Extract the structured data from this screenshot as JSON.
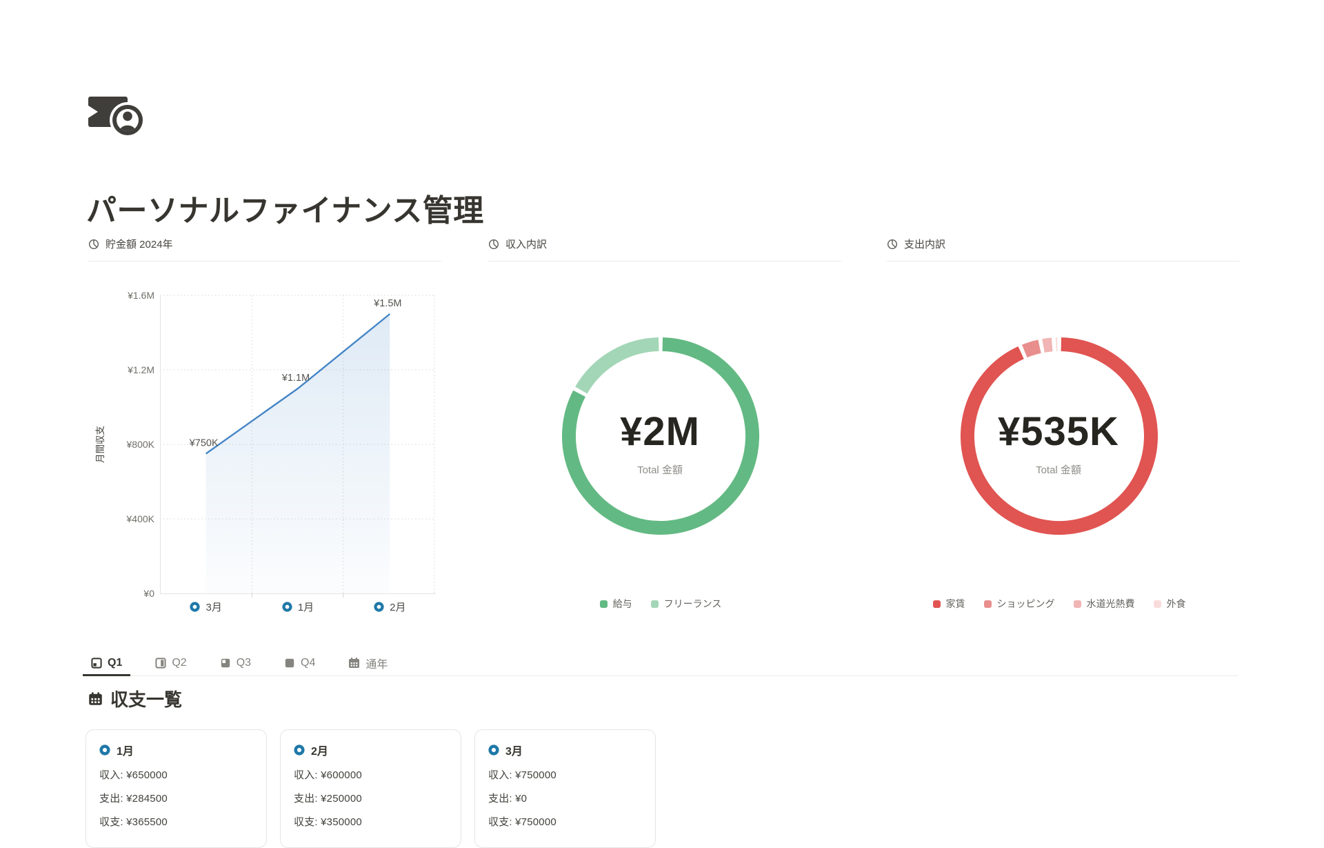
{
  "page": {
    "title": "パーソナルファイナンス管理"
  },
  "icons": {
    "page_icon": "banknote-with-coin",
    "column_header_icon": "pie-chart",
    "month_marker_icon": "blue-ring-marker",
    "list_heading_icon": "calendar",
    "tab_q_icons": "quarter-filled-squares",
    "tab_year_icon": "calendar"
  },
  "colors": {
    "text_dark": "#37352f",
    "text_gray": "#787774",
    "line_blue": "#4485c7",
    "marker_blue": "#1f78a8",
    "income_green": "#63b983",
    "income_green_light": "#a3d6b6",
    "expense_red": "#e05451",
    "divider": "#eceae8"
  },
  "chart_data": [
    {
      "id": "savings-line",
      "type": "line",
      "title": "貯金額 2024年",
      "categories": [
        "3月",
        "1月",
        "2月"
      ],
      "values": [
        750000,
        1100000,
        1500000
      ],
      "point_labels": [
        "¥750K",
        "¥1.1M",
        "¥1.5M"
      ],
      "xlabel": "",
      "ylabel": "月間収支",
      "yticks": [
        "¥0",
        "¥400K",
        "¥800K",
        "¥1.2M",
        "¥1.6M"
      ],
      "ylim": [
        0,
        1600000
      ],
      "grid": "dotted",
      "legend_position": "none",
      "line_color": "#4485c7",
      "area_fill": "light-blue-gradient",
      "marker_color": "#1f78a8"
    },
    {
      "id": "income-donut",
      "type": "pie",
      "title": "収入内訳",
      "center_value": "¥2M",
      "center_label": "Total 金額",
      "legend_position": "bottom",
      "segments": [
        {
          "name": "給与",
          "percent": 83,
          "color": "#63b983"
        },
        {
          "name": "フリーランス",
          "percent": 17,
          "color": "#a3d6b6"
        }
      ]
    },
    {
      "id": "expense-donut",
      "type": "pie",
      "title": "支出内訳",
      "center_value": "¥535K",
      "center_label": "Total 金額",
      "legend_position": "bottom",
      "segments": [
        {
          "name": "家賃",
          "percent": 93.5,
          "color": "#e05451"
        },
        {
          "name": "ショッピング",
          "percent": 3.4,
          "color": "#e88f8d"
        },
        {
          "name": "水道光熱費",
          "percent": 2.2,
          "color": "#f0b5b4"
        },
        {
          "name": "外食",
          "percent": 0.9,
          "color": "#f8dcdb"
        }
      ]
    }
  ],
  "tabs": {
    "items": [
      {
        "label": "Q1",
        "active": true
      },
      {
        "label": "Q2",
        "active": false
      },
      {
        "label": "Q3",
        "active": false
      },
      {
        "label": "Q4",
        "active": false
      },
      {
        "label": "通年",
        "active": false
      }
    ]
  },
  "list": {
    "heading": "収支一覧",
    "cards": [
      {
        "title": "1月",
        "lines": [
          "収入: ¥650000",
          "支出: ¥284500",
          "収支: ¥365500"
        ]
      },
      {
        "title": "2月",
        "lines": [
          "収入: ¥600000",
          "支出: ¥250000",
          "収支: ¥350000"
        ]
      },
      {
        "title": "3月",
        "lines": [
          "収入: ¥750000",
          "支出: ¥0",
          "収支: ¥750000"
        ]
      }
    ]
  }
}
